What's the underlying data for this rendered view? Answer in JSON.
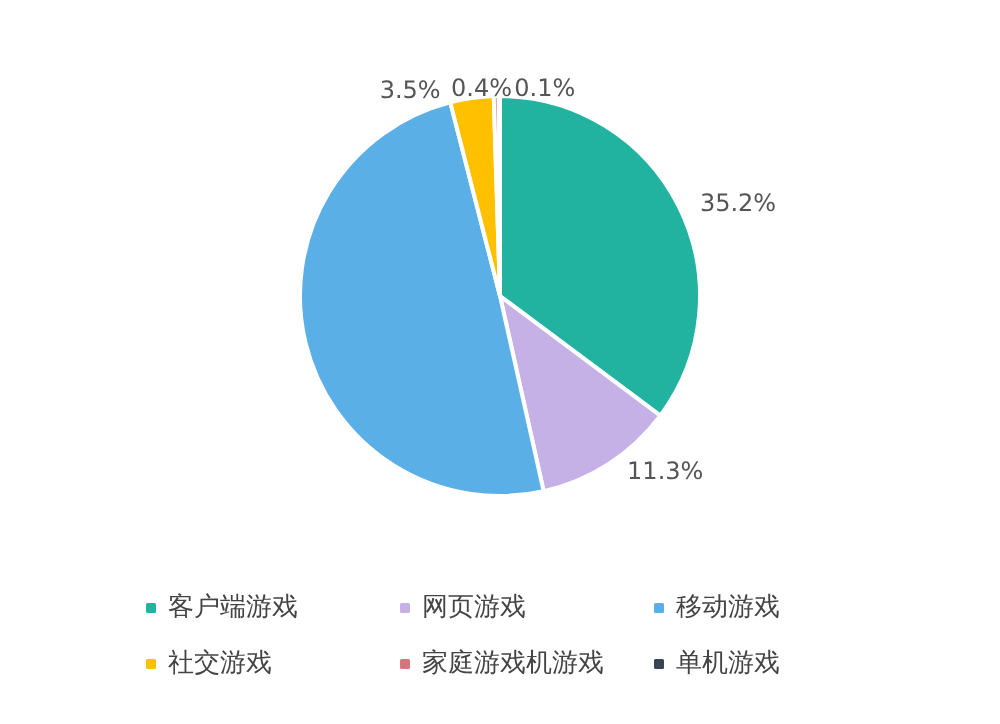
{
  "chart_data": {
    "type": "pie",
    "categories": [
      "客户端游戏",
      "网页游戏",
      "移动游戏",
      "社交游戏",
      "家庭游戏机游戏",
      "单机游戏"
    ],
    "values": [
      35.2,
      11.3,
      49.5,
      3.5,
      0.4,
      0.1
    ],
    "colors": [
      "#21b3a0",
      "#c6b1e6",
      "#5aafe6",
      "#ffc000",
      "#d8747c",
      "#3a4452"
    ],
    "value_labels": [
      "35.2%",
      "11.3%",
      null,
      "3.5%",
      "0.4%",
      "0.1%"
    ],
    "legend": "bottom"
  }
}
